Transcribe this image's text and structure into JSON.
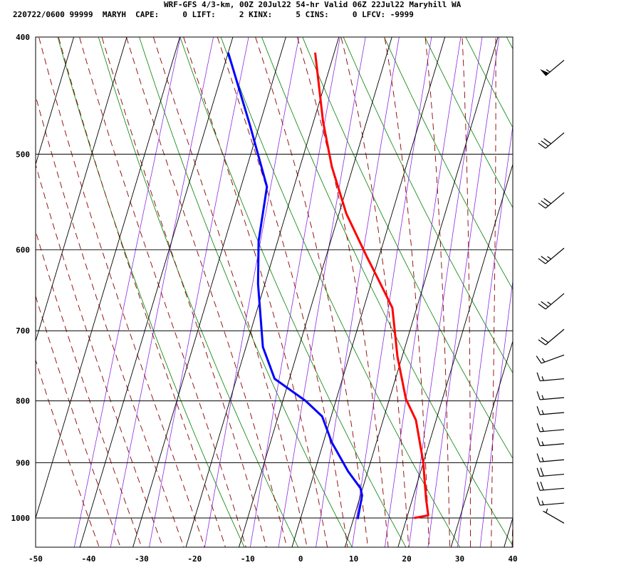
{
  "header": {
    "line1": "WRF-GFS 4/3-km, 00Z 20Jul22 54-hr Valid 06Z 22Jul22 Maryhill WA",
    "line2": "220722/0600 99999  MARYH  CAPE:     0 LIFT:     2 KINX:     5 CINS:     0 LFCV: -9999"
  },
  "chart_data": {
    "type": "line",
    "title": "WRF-GFS 4/3-km, 00Z 20Jul22 54-hr Valid 06Z 22Jul22 Maryhill WA",
    "skew_t": true,
    "xlim": [
      -50,
      40
    ],
    "ylim": [
      1040,
      400
    ],
    "x_ticks": [
      -50,
      -40,
      -30,
      -20,
      -10,
      0,
      10,
      20,
      30,
      40
    ],
    "y_ticks": [
      400,
      500,
      600,
      700,
      800,
      900,
      1000
    ],
    "x_tick_labels": [
      "-50",
      "-40",
      "-30",
      "-20",
      "-10",
      "0",
      "10",
      "20",
      "30",
      "40"
    ],
    "y_tick_labels": [
      "400",
      "500",
      "600",
      "700",
      "800",
      "900",
      "1000"
    ],
    "grid": true,
    "colors": {
      "temperature": "#ff0000",
      "dewpoint": "#0000ff",
      "dry_adiabat": "#008000",
      "moist_adiabat": "#8b0000",
      "mixing_ratio": "#8a2be2"
    },
    "series": [
      {
        "key": "temperature",
        "x": [
          -23.6,
          -18.2,
          -14.0,
          -8.6,
          -2.3,
          0.8,
          5.4,
          9.1,
          13.1,
          16.2,
          20.0,
          21.2,
          22.6,
          23.9,
          21.4
        ],
        "y": [
          412,
          470,
          512,
          560,
          608,
          632,
          670,
          735,
          797,
          830,
          900,
          930,
          965,
          995,
          1000
        ]
      },
      {
        "key": "dewpoint",
        "x": [
          -40.0,
          -31.8,
          -25.1,
          -23.6,
          -21.3,
          -16.8,
          -12.8,
          -5.7,
          -1.7,
          1.6,
          6.3,
          9.6,
          10.3,
          10.8
        ],
        "y": [
          412,
          473,
          532,
          590,
          640,
          722,
          767,
          800,
          824,
          866,
          915,
          945,
          958,
          1002
        ]
      }
    ],
    "wind_barbs": [
      {
        "p": 418,
        "dir": 230,
        "speed": 55
      },
      {
        "p": 480,
        "dir": 230,
        "speed": 30
      },
      {
        "p": 538,
        "dir": 230,
        "speed": 30
      },
      {
        "p": 598,
        "dir": 230,
        "speed": 25
      },
      {
        "p": 652,
        "dir": 230,
        "speed": 25
      },
      {
        "p": 698,
        "dir": 230,
        "speed": 20
      },
      {
        "p": 733,
        "dir": 250,
        "speed": 15
      },
      {
        "p": 767,
        "dir": 265,
        "speed": 15
      },
      {
        "p": 795,
        "dir": 265,
        "speed": 15
      },
      {
        "p": 818,
        "dir": 265,
        "speed": 15
      },
      {
        "p": 845,
        "dir": 265,
        "speed": 15
      },
      {
        "p": 868,
        "dir": 265,
        "speed": 15
      },
      {
        "p": 895,
        "dir": 265,
        "speed": 15
      },
      {
        "p": 920,
        "dir": 265,
        "speed": 20
      },
      {
        "p": 945,
        "dir": 265,
        "speed": 20
      },
      {
        "p": 972,
        "dir": 265,
        "speed": 15
      },
      {
        "p": 1010,
        "dir": 300,
        "speed": 5
      }
    ]
  }
}
